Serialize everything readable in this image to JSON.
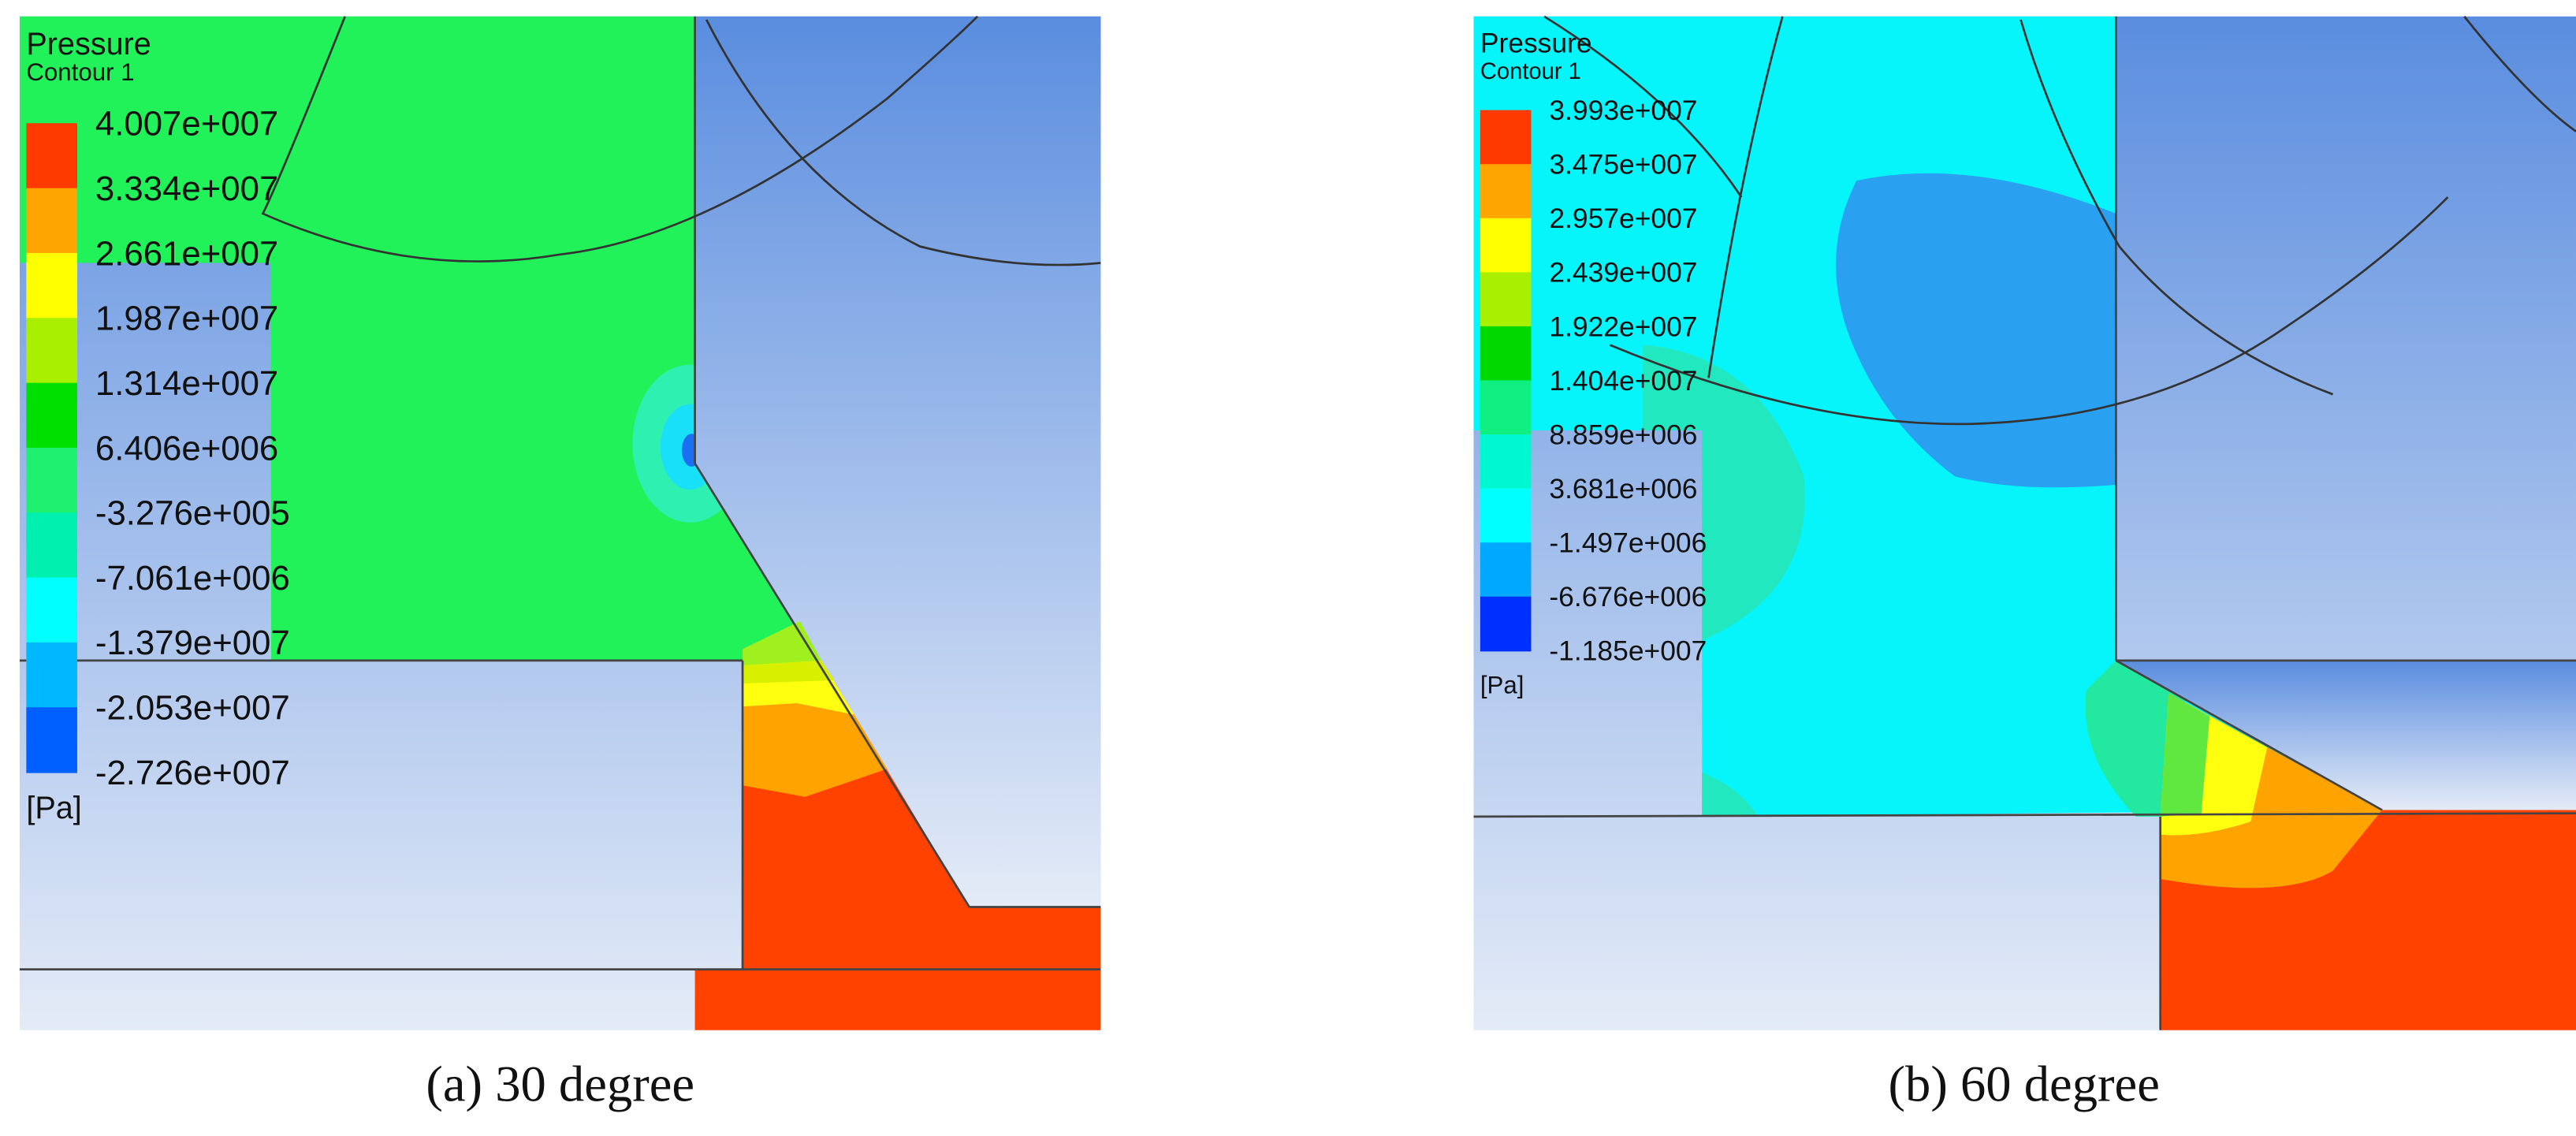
{
  "panels": [
    {
      "title": "Pressure",
      "subtitle": "Contour 1",
      "legend_labels": [
        "4.007e+007",
        "3.334e+007",
        "2.661e+007",
        "1.987e+007",
        "1.314e+007",
        "6.406e+006",
        "-3.276e+005",
        "-7.061e+006",
        "-1.379e+007",
        "-2.053e+007",
        "-2.726e+007"
      ],
      "unit": "[Pa]",
      "caption": "(a) 30 degree"
    },
    {
      "title": "Pressure",
      "subtitle": "Contour 1",
      "legend_labels": [
        "3.993e+007",
        "3.475e+007",
        "2.957e+007",
        "2.439e+007",
        "1.922e+007",
        "1.404e+007",
        "8.859e+006",
        "3.681e+006",
        "-1.497e+006",
        "-6.676e+006",
        "-1.185e+007"
      ],
      "unit": "[Pa]",
      "caption": "(b) 60 degree"
    }
  ]
}
